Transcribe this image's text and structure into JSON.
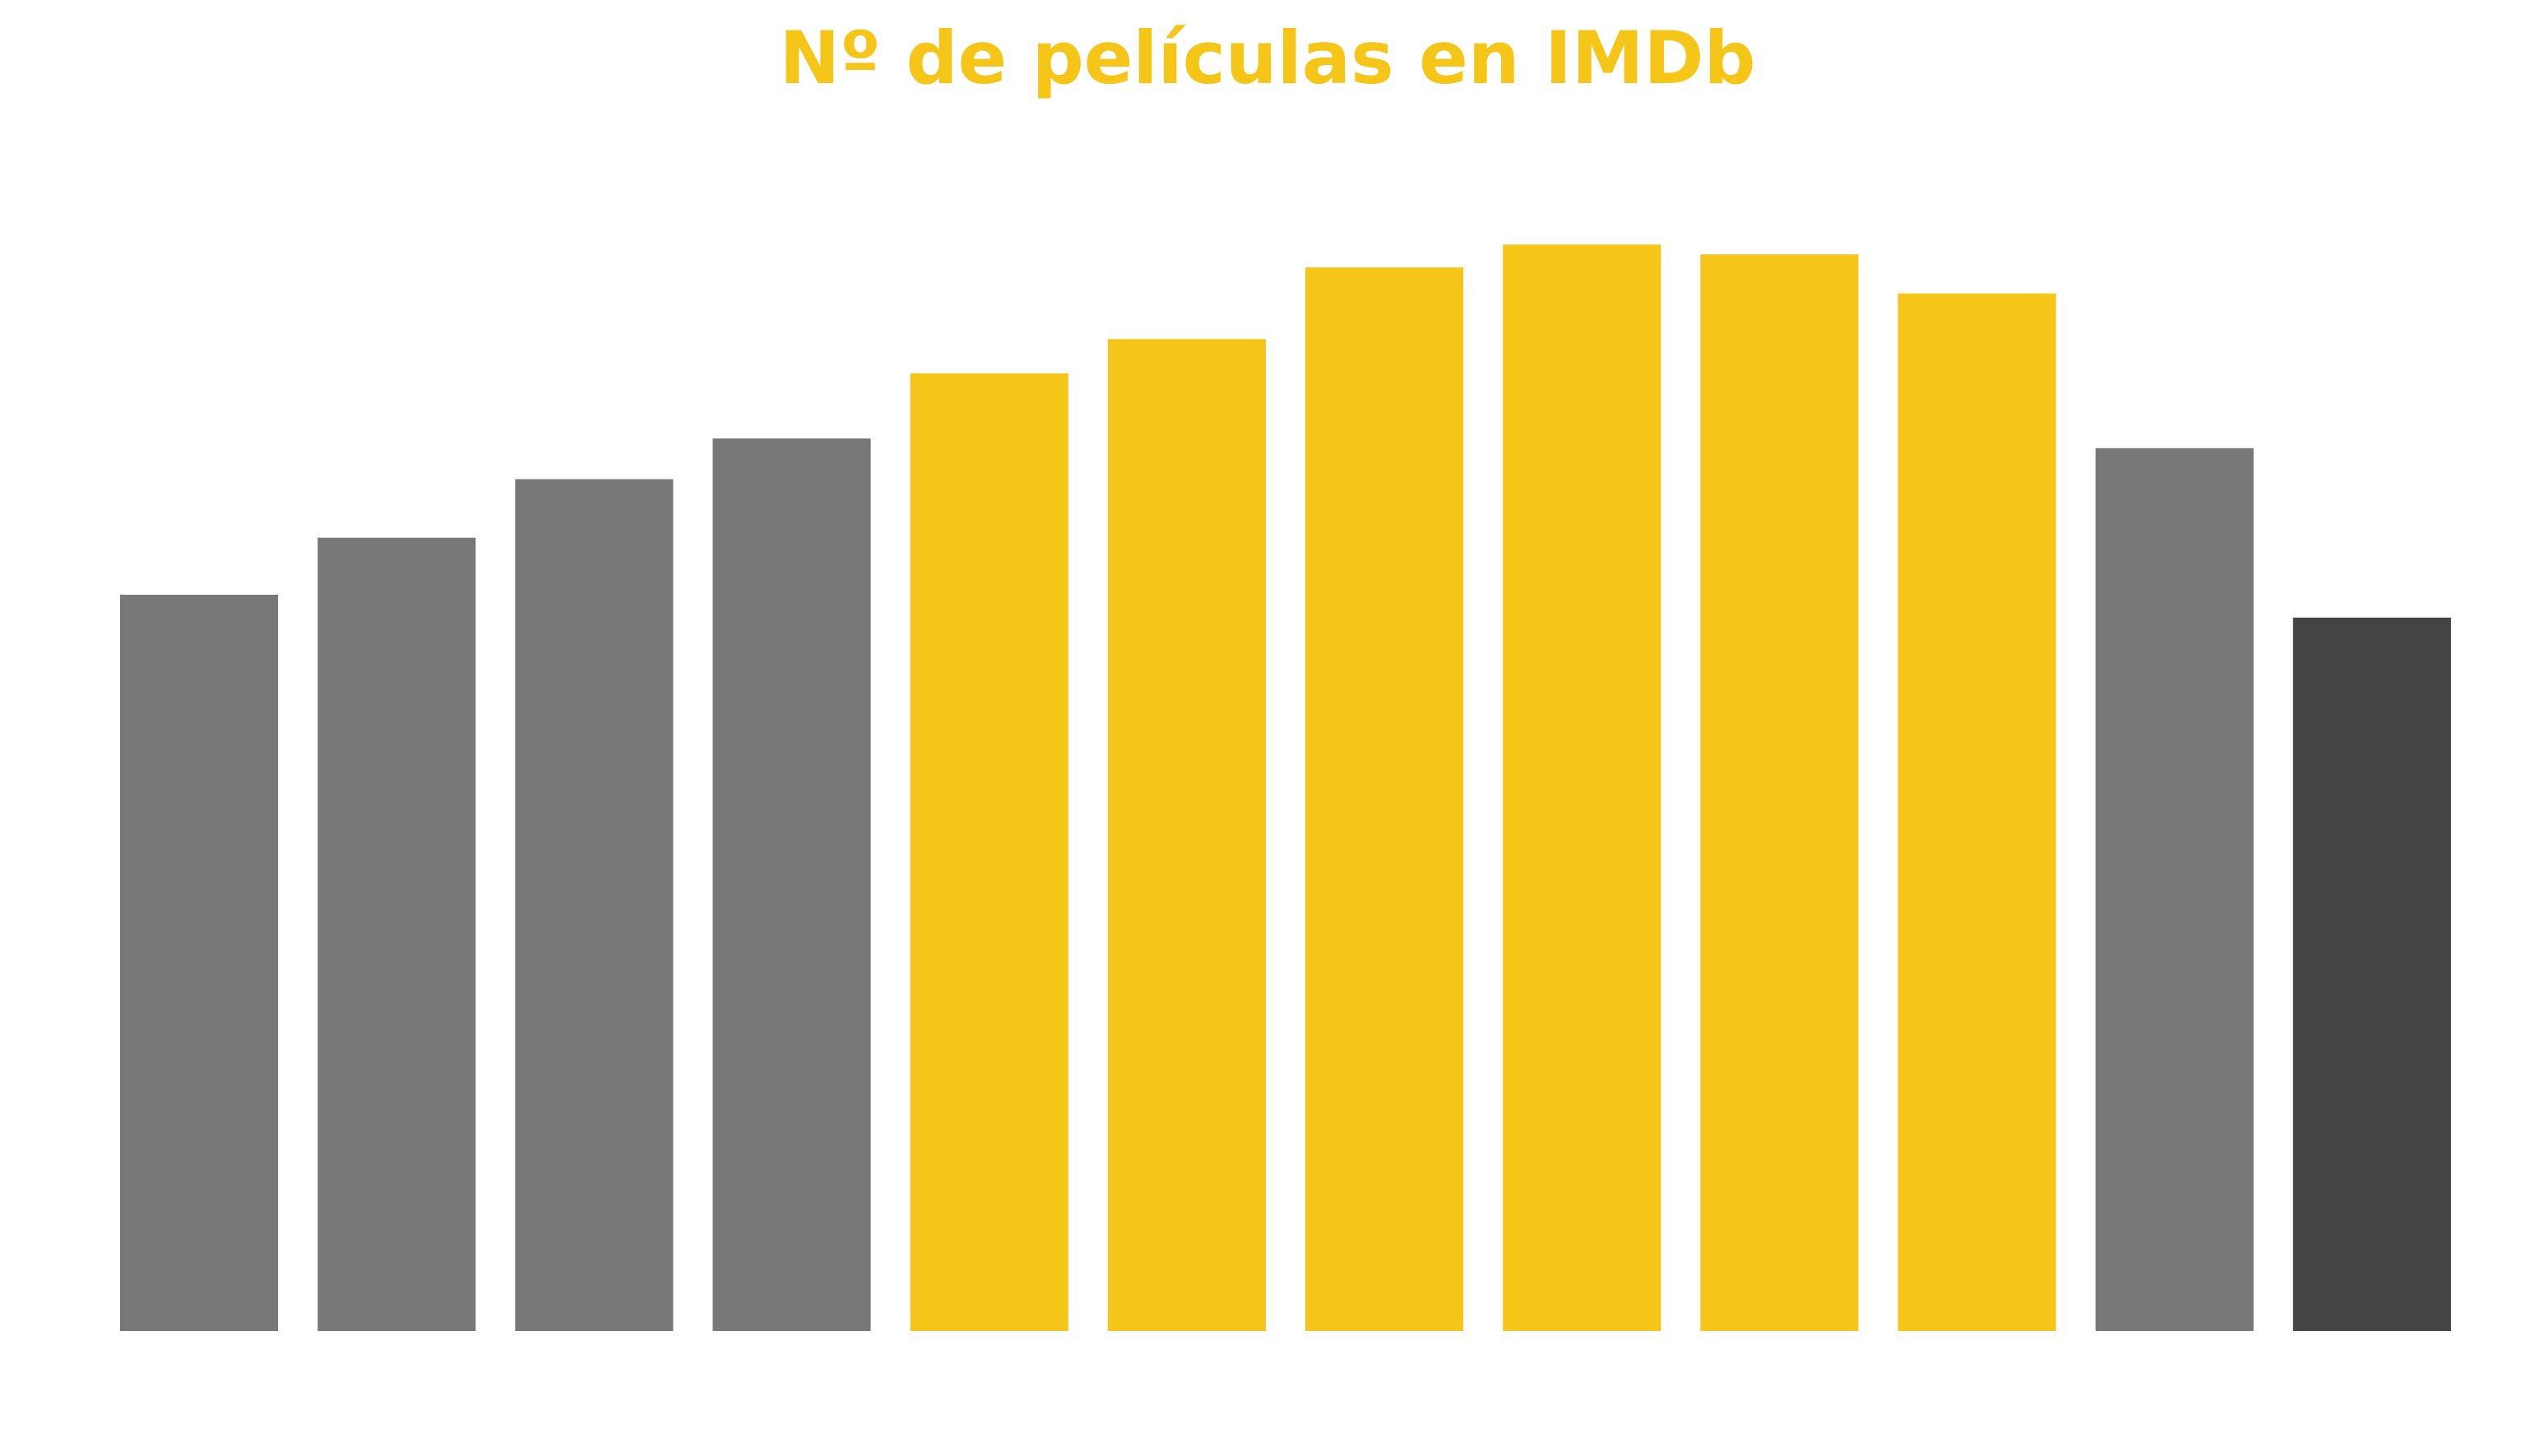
{
  "chart_data": {
    "type": "bar",
    "title": "Nº de películas en IMDb",
    "xlabel": "",
    "ylabel": "",
    "values": [
      452,
      487,
      523,
      548,
      588,
      609,
      653,
      667,
      661,
      637,
      542,
      438
    ],
    "bar_colors": [
      "#787878",
      "#787878",
      "#787878",
      "#787878",
      "#F5C518",
      "#F5C518",
      "#F5C518",
      "#F5C518",
      "#F5C518",
      "#F5C518",
      "#787878",
      "#444444"
    ],
    "ylim": [
      0,
      700
    ],
    "grid": false,
    "axes_visible": false,
    "colors": {
      "accent": "#F5C518",
      "muted": "#787878",
      "dark": "#444444"
    }
  }
}
